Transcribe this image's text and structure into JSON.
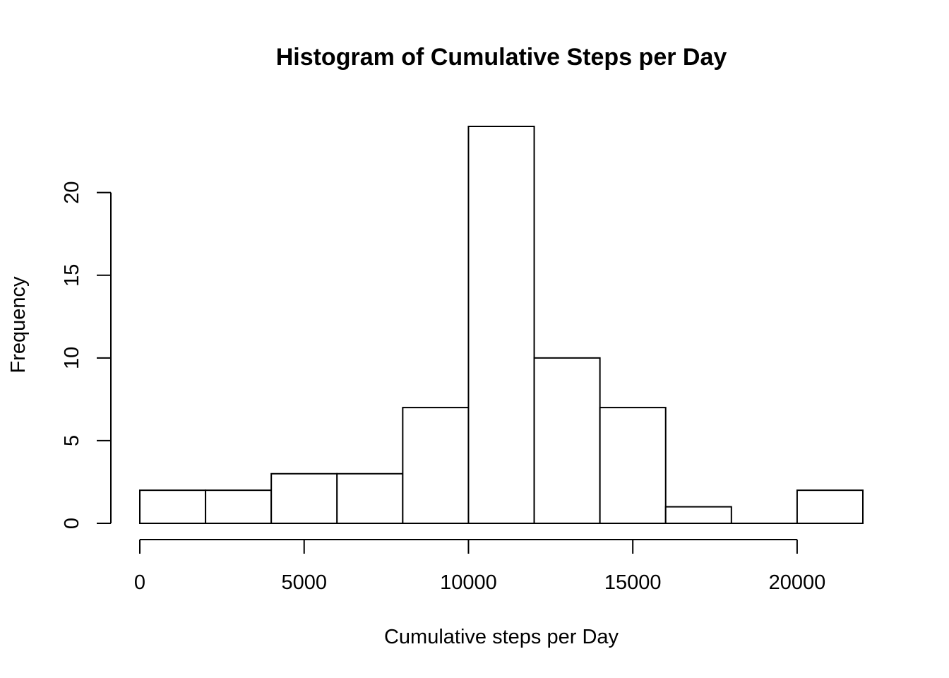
{
  "chart_data": {
    "type": "bar",
    "title": "Histogram of Cumulative Steps per Day",
    "xlabel": "Cumulative steps per Day",
    "ylabel": "Frequency",
    "bin_edges": [
      0,
      2000,
      4000,
      6000,
      8000,
      10000,
      12000,
      14000,
      16000,
      18000,
      20000,
      22000
    ],
    "values": [
      2,
      2,
      3,
      3,
      7,
      24,
      10,
      7,
      1,
      0,
      2
    ],
    "xlim": [
      0,
      22000
    ],
    "ylim": [
      0,
      24
    ],
    "x_ticks": [
      0,
      5000,
      10000,
      15000,
      20000
    ],
    "y_ticks": [
      0,
      5,
      10,
      15,
      20
    ],
    "x_tick_labels": [
      "0",
      "5000",
      "10000",
      "15000",
      "20000"
    ],
    "y_tick_labels": [
      "0",
      "5",
      "10",
      "15",
      "20"
    ],
    "bar_fill": "#ffffff",
    "bar_stroke": "#000000",
    "grid": false,
    "legend": "none"
  }
}
